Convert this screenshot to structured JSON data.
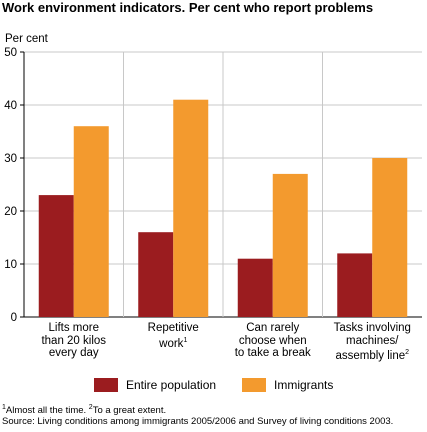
{
  "title": "Work environment indicators. Per cent who report problems",
  "chart_data": {
    "type": "bar",
    "ylabel": "Per cent",
    "ylim": [
      0,
      50
    ],
    "yticks": [
      0,
      10,
      20,
      30,
      40,
      50
    ],
    "categories": [
      {
        "lines": [
          "Lifts more",
          "than 20 kilos",
          "every day"
        ],
        "sup": ""
      },
      {
        "lines": [
          "Repetitive",
          "work"
        ],
        "sup": "1"
      },
      {
        "lines": [
          "Can rarely",
          "choose when",
          "to take a break"
        ],
        "sup": ""
      },
      {
        "lines": [
          "Tasks involving",
          "machines/",
          "assembly line"
        ],
        "sup": "2"
      }
    ],
    "series": [
      {
        "name": "Entire population",
        "color": "#9b1c1f",
        "values": [
          23,
          16,
          11,
          12
        ]
      },
      {
        "name": "Immigrants",
        "color": "#f39a2e",
        "values": [
          36,
          41,
          27,
          30
        ]
      }
    ],
    "grid": "vertical separators between categories",
    "legend": "bottom"
  },
  "footnote": {
    "note1_sup": "1",
    "note1": "Almost all the time.",
    "note2_sup": "2",
    "note2": "To a great extent.",
    "source": "Source: Living conditions among immigrants 2005/2006 and Survey of living conditions 2003."
  }
}
